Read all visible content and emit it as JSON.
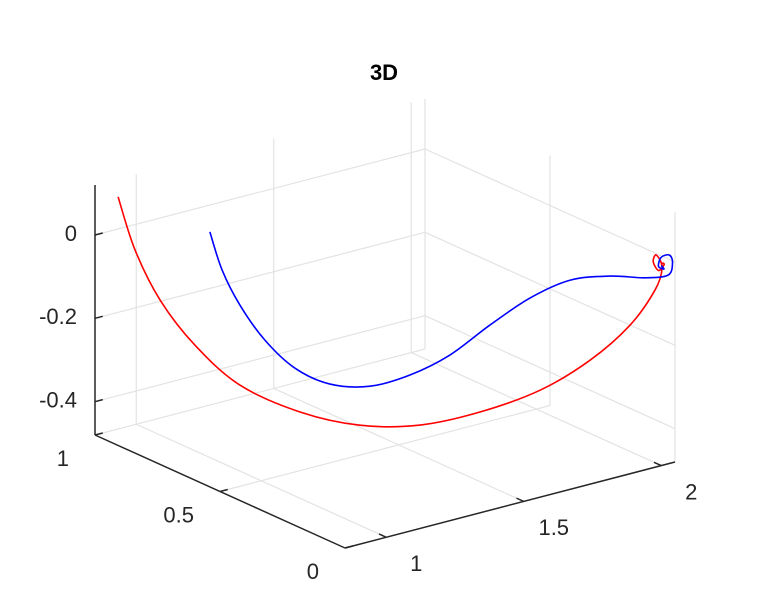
{
  "chart_data": {
    "type": "line3d",
    "title": "3D",
    "xlim": [
      0.85,
      2.05
    ],
    "ylim": [
      0,
      1
    ],
    "zlim": [
      -0.48,
      0.12
    ],
    "xticks": [
      1,
      1.5,
      2
    ],
    "yticks": [
      0,
      0.5,
      1
    ],
    "zticks": [
      -0.4,
      -0.2,
      0
    ],
    "grid": true,
    "series": [
      {
        "color": "#ff0000",
        "x": [
          0.934,
          0.923,
          0.941,
          0.995,
          1.086,
          1.232,
          1.377,
          1.523,
          1.668,
          1.814,
          1.923,
          1.995,
          2.023,
          2.012,
          2.0,
          1.98,
          1.99,
          2.01,
          2.005,
          2.0
        ],
        "y": [
          1,
          0.92,
          0.84,
          0.76,
          0.68,
          0.6,
          0.52,
          0.44,
          0.36,
          0.28,
          0.2,
          0.12,
          0.05,
          0.01,
          0.02,
          0.01,
          0,
          0,
          0,
          0
        ],
        "z": [
          0.077,
          -0.027,
          -0.128,
          -0.224,
          -0.314,
          -0.382,
          -0.417,
          -0.42,
          -0.392,
          -0.343,
          -0.268,
          -0.175,
          -0.076,
          -0.01,
          0.02,
          0.01,
          -0.01,
          0,
          0.005,
          0
        ]
      },
      {
        "color": "#0000ff",
        "x": [
          0.995,
          1.003,
          1.032,
          1.086,
          1.159,
          1.25,
          1.359,
          1.468,
          1.577,
          1.686,
          1.796,
          1.895,
          1.977,
          2.032,
          2.052,
          2.05,
          2.03,
          2.0,
          1.99,
          2.01,
          2.0
        ],
        "y": [
          0.7,
          0.66,
          0.62,
          0.58,
          0.54,
          0.5,
          0.46,
          0.42,
          0.38,
          0.34,
          0.3,
          0.25,
          0.18,
          0.1,
          0.03,
          0.01,
          0,
          0,
          0,
          0,
          0
        ],
        "z": [
          0.064,
          -0.018,
          -0.097,
          -0.179,
          -0.248,
          -0.291,
          -0.304,
          -0.285,
          -0.245,
          -0.181,
          -0.124,
          -0.085,
          -0.07,
          -0.062,
          -0.04,
          -0.005,
          0.02,
          0.02,
          0,
          -0.01,
          0
        ]
      }
    ]
  }
}
